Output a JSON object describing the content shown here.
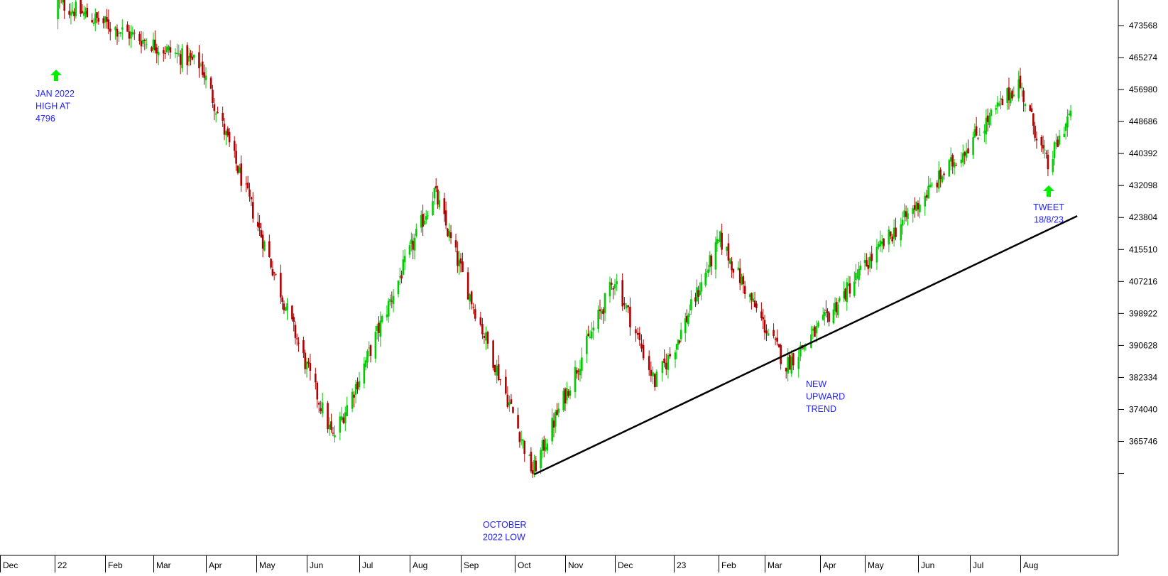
{
  "chart_data": {
    "type": "candlestick",
    "title": "",
    "xlabel": "",
    "ylabel": "",
    "x_axis": {
      "months": [
        "Dec",
        "22",
        "Feb",
        "Mar",
        "Apr",
        "May",
        "Jun",
        "Jul",
        "Aug",
        "Sep",
        "Oct",
        "Nov",
        "Dec",
        "23",
        "Feb",
        "Mar",
        "Apr",
        "May",
        "Jun",
        "Jul",
        "Aug"
      ],
      "period_start": "2021-12-01",
      "period_end": "2023-09-05"
    },
    "y_axis": {
      "position": "right",
      "tick_labels": [
        "473568",
        "465274",
        "456980",
        "448686",
        "440392",
        "432098",
        "423804",
        "415510",
        "407216",
        "398922",
        "390628",
        "382334",
        "374040",
        "365746"
      ],
      "ylim": [
        348500,
        480300
      ]
    },
    "up_color": "#00cc00",
    "down_color": "#b00000",
    "trendline": {
      "from": {
        "date": "2022-10-13",
        "value": 357200
      },
      "to": {
        "date": "2023-09-05",
        "value": 424200
      },
      "color": "#000000"
    },
    "key_points": [
      {
        "date": "2022-01-03",
        "close": 479600
      },
      {
        "date": "2022-03-29",
        "close": 463300
      },
      {
        "date": "2022-06-16",
        "close": 366600
      },
      {
        "date": "2022-08-16",
        "close": 430500
      },
      {
        "date": "2022-10-12",
        "close": 357700
      },
      {
        "date": "2022-12-01",
        "close": 408000
      },
      {
        "date": "2022-12-22",
        "close": 381000
      },
      {
        "date": "2023-02-02",
        "close": 418000
      },
      {
        "date": "2023-03-13",
        "close": 385500
      },
      {
        "date": "2023-07-31",
        "close": 458900
      },
      {
        "date": "2023-08-18",
        "close": 436900
      },
      {
        "date": "2023-09-01",
        "close": 451500
      }
    ],
    "annotations": [
      {
        "lines": [
          "JAN 2022",
          "HIGH AT",
          "4796"
        ],
        "arrow": true,
        "align": "left"
      },
      {
        "lines": [
          "OCTOBER",
          "2022 LOW"
        ],
        "arrow": false,
        "align": "left"
      },
      {
        "lines": [
          "NEW",
          "UPWARD",
          "TREND"
        ],
        "arrow": false,
        "align": "left"
      },
      {
        "lines": [
          "TWEET",
          "18/8/23"
        ],
        "arrow": true,
        "align": "center"
      }
    ],
    "annotation_color": "#1f1fff",
    "arrow_color": "#00ee00"
  }
}
